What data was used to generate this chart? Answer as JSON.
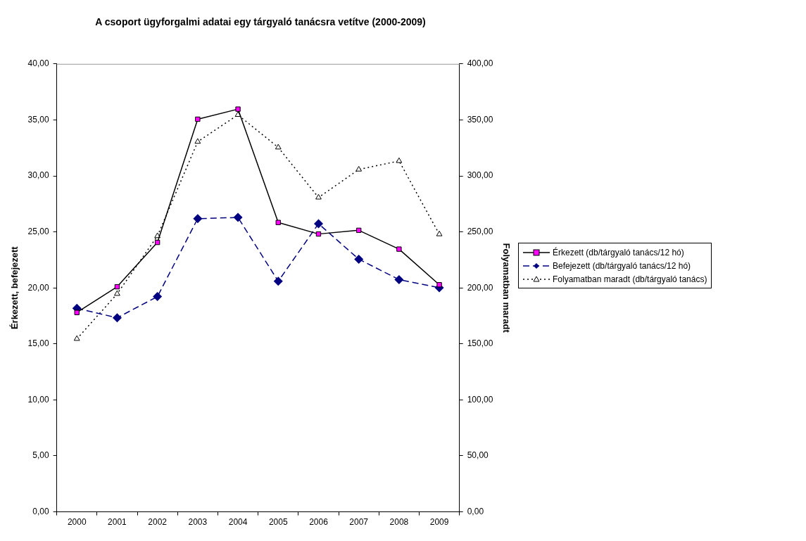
{
  "chart_data": {
    "type": "line",
    "title": "A csoport ügyforgalmi adatai egy tárgyaló tanácsra vetítve (2000-2009)",
    "categories": [
      "2000",
      "2001",
      "2002",
      "2003",
      "2004",
      "2005",
      "2006",
      "2007",
      "2008",
      "2009"
    ],
    "ylabel": "Érkezett, befejezett",
    "y2label": "Folyamatban maradt",
    "series": [
      {
        "name": "Érkezett (db/tárgyaló tanács/12 hó)",
        "color": "#000000",
        "colors": [
          "#ff00ff",
          "#ff00ff",
          "#ff00ff",
          "#ff00ff",
          "#ff00ff",
          "#ff00ff",
          "#ff00ff",
          "#ff00ff",
          "#ff00ff",
          "#ff00ff"
        ],
        "marker": "square",
        "line_style": "solid",
        "values": [
          17.8,
          20.1,
          24.06,
          35.06,
          35.96,
          25.84,
          24.81,
          25.14,
          23.46,
          20.28
        ]
      },
      {
        "name": "Befejezett (db/tárgyaló tanács/12 hó)",
        "color": "#000080",
        "marker": "diamond",
        "line_style": "dashed",
        "values": [
          18.17,
          17.33,
          19.22,
          26.18,
          26.29,
          20.59,
          25.73,
          22.56,
          20.74,
          20.02
        ]
      },
      {
        "name": "Folyamatban maradt (db/tárgyaló tanács)",
        "color": "#000000",
        "marker": "triangle",
        "line_style": "dotted",
        "axis": "y2",
        "values": [
          154.5,
          194.7,
          246.3,
          330.5,
          354.5,
          325.4,
          280.7,
          305.7,
          313.3,
          247.9
        ]
      }
    ],
    "ylim": [
      0,
      40
    ],
    "yticks": [
      {
        "value": 0,
        "label": "0,00"
      },
      {
        "value": 5,
        "label": "5,00"
      },
      {
        "value": 10,
        "label": "10,00"
      },
      {
        "value": 15,
        "label": "15,00"
      },
      {
        "value": 20,
        "label": "20,00"
      },
      {
        "value": 25,
        "label": "25,00"
      },
      {
        "value": 30,
        "label": "30,00"
      },
      {
        "value": 35,
        "label": "35,00"
      },
      {
        "value": 40,
        "label": "40,00"
      }
    ],
    "y2lim": [
      0,
      400
    ],
    "y2ticks": [
      {
        "value": 0,
        "label": "0,00"
      },
      {
        "value": 50,
        "label": "50,00"
      },
      {
        "value": 100,
        "label": "100,00"
      },
      {
        "value": 150,
        "label": "150,00"
      },
      {
        "value": 200,
        "label": "200,00"
      },
      {
        "value": 250,
        "label": "250,00"
      },
      {
        "value": 300,
        "label": "300,00"
      },
      {
        "value": 350,
        "label": "350,00"
      },
      {
        "value": 400,
        "label": "400,00"
      }
    ],
    "grid": false,
    "legend": "right"
  }
}
